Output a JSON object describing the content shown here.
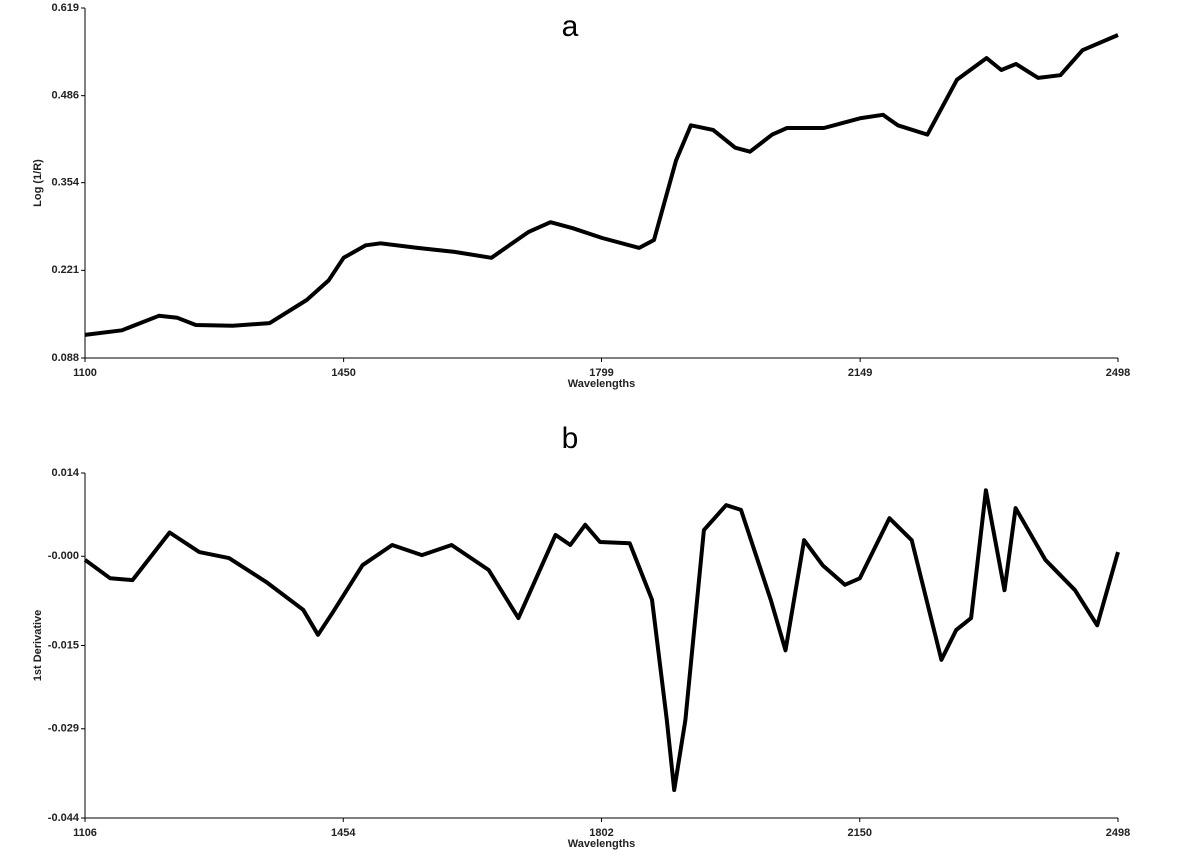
{
  "chart_data": [
    {
      "type": "line",
      "title": "a",
      "x_label": "Wavelengths",
      "y_label": "Log (1/R)",
      "xlim": [
        1100,
        2498
      ],
      "xticks": [
        1100,
        1450,
        1799,
        2149,
        2498
      ],
      "ylim": [
        0.088,
        0.619
      ],
      "yticks": [
        0.088,
        0.221,
        0.354,
        0.486,
        0.619
      ],
      "x": [
        1100,
        1150,
        1200,
        1225,
        1250,
        1300,
        1350,
        1400,
        1430,
        1450,
        1480,
        1500,
        1550,
        1600,
        1650,
        1700,
        1730,
        1760,
        1800,
        1850,
        1870,
        1900,
        1920,
        1950,
        1980,
        2000,
        2030,
        2050,
        2100,
        2150,
        2180,
        2200,
        2240,
        2280,
        2320,
        2340,
        2360,
        2390,
        2420,
        2450,
        2498
      ],
      "series": [
        {
          "color": "#000000",
          "values": [
            0.123,
            0.13,
            0.152,
            0.149,
            0.138,
            0.137,
            0.141,
            0.176,
            0.206,
            0.24,
            0.259,
            0.262,
            0.255,
            0.249,
            0.24,
            0.279,
            0.294,
            0.285,
            0.27,
            0.255,
            0.267,
            0.388,
            0.441,
            0.434,
            0.407,
            0.401,
            0.427,
            0.437,
            0.437,
            0.452,
            0.457,
            0.441,
            0.427,
            0.51,
            0.543,
            0.525,
            0.534,
            0.513,
            0.517,
            0.555,
            0.578
          ]
        }
      ]
    },
    {
      "type": "line",
      "title": "b",
      "x_label": "Wavelengths",
      "y_label": "1st Derivative",
      "xlim": [
        1106,
        2498
      ],
      "xticks": [
        1106,
        1454,
        1802,
        2150,
        2498
      ],
      "ylim": [
        -0.044,
        0.014
      ],
      "yticks": [
        -0.044,
        -0.029,
        -0.015,
        {
          "value": 0,
          "label": "-0.000"
        },
        0.014
      ],
      "x": [
        1106,
        1140,
        1170,
        1220,
        1260,
        1300,
        1350,
        1400,
        1420,
        1440,
        1480,
        1520,
        1560,
        1600,
        1650,
        1690,
        1740,
        1760,
        1780,
        1800,
        1840,
        1870,
        1890,
        1900,
        1915,
        1940,
        1970,
        1990,
        2030,
        2050,
        2075,
        2100,
        2130,
        2150,
        2190,
        2220,
        2260,
        2280,
        2300,
        2320,
        2345,
        2360,
        2400,
        2440,
        2470,
        2498
      ],
      "series": [
        {
          "color": "#000000",
          "values": [
            -0.0006,
            -0.0037,
            -0.004,
            0.004,
            0.0007,
            -0.0003,
            -0.0043,
            -0.009,
            -0.0132,
            -0.0094,
            -0.0015,
            0.0019,
            0.0002,
            0.0019,
            -0.0023,
            -0.0104,
            0.0036,
            0.0019,
            0.0053,
            0.0024,
            0.0022,
            -0.0073,
            -0.0275,
            -0.0393,
            -0.0275,
            0.0044,
            0.0086,
            0.0078,
            -0.0073,
            -0.0158,
            0.0027,
            -0.0015,
            -0.0048,
            -0.0037,
            0.0064,
            0.0027,
            -0.0174,
            -0.0124,
            -0.0104,
            0.0111,
            -0.0057,
            0.0081,
            -0.0006,
            -0.0057,
            -0.0116,
            0.0007
          ]
        }
      ]
    }
  ]
}
